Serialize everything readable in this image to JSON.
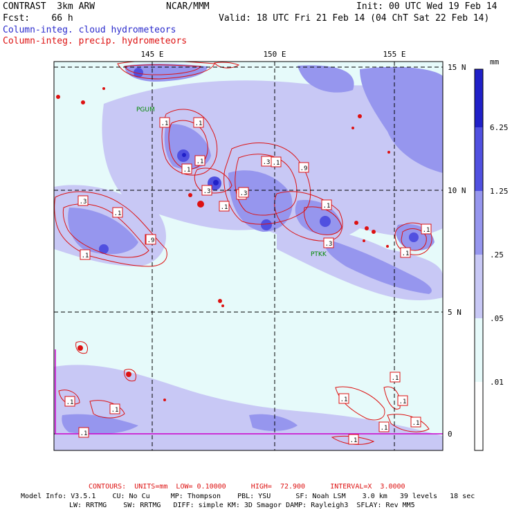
{
  "header": {
    "model": "CONTRAST  3km ARW",
    "center": "NCAR/MMM",
    "init": "Init: 00 UTC Wed 19 Feb 14",
    "fcst": "Fcst:    66 h",
    "valid": "Valid: 18 UTC Fri 21 Feb 14 (04 ChT Sat 22 Feb 14)",
    "field1": "Column-integ. cloud hydrometeors",
    "field2": "Column-integ. precip. hydrometeors"
  },
  "colors": {
    "level1": "#e6fafa",
    "level2": "#c8c8f5",
    "level3": "#9696ee",
    "level4": "#5050e0",
    "level5": "#2020c8",
    "contour": "#dd1111",
    "station": "#008800",
    "magenta": "#cc00cc"
  },
  "chart_data": {
    "type": "heatmap",
    "title": "Column-integ. cloud hydrometeors",
    "overlay": "Column-integ. precip. hydrometeors",
    "x_ticks": [
      "145 E",
      "150 E",
      "155 E"
    ],
    "y_ticks": [
      "15 N",
      "10 N",
      "5 N",
      "0"
    ],
    "xlim": [
      141,
      157
    ],
    "ylim": [
      -0.5,
      15.5
    ],
    "grid": true,
    "legend_unit": "mm",
    "legend_levels": [
      "6.25",
      "1.25",
      ".25",
      ".05",
      ".01"
    ],
    "stations": [
      "PGUM",
      "PTKK"
    ],
    "contour_labels": [
      ".1",
      ".1",
      ".1",
      ".3",
      ".3",
      ".9",
      ".3",
      ".1",
      ".3",
      ".1",
      ".3",
      ".1",
      ".1",
      ".3",
      ".1",
      ".3",
      ".1",
      ".9",
      ".1",
      ".1",
      ".1",
      ".1",
      ".1",
      ".1",
      ".1",
      ".1",
      ".1",
      ".1",
      ".1"
    ]
  },
  "footer": {
    "contours": "CONTOURS:  UNITS=mm  LOW= 0.10000      HIGH=  72.900      INTERVAL=X  3.0000",
    "line1": "Model Info: V3.5.1    CU: No Cu     MP: Thompson    PBL: YSU      SF: Noah LSM    3.0 km   39 levels   18 sec",
    "line2": "LW: RRTMG    SW: RRTMG   DIFF: simple KM: 3D Smagor DAMP: Rayleigh3  SFLAY: Rev MM5"
  }
}
